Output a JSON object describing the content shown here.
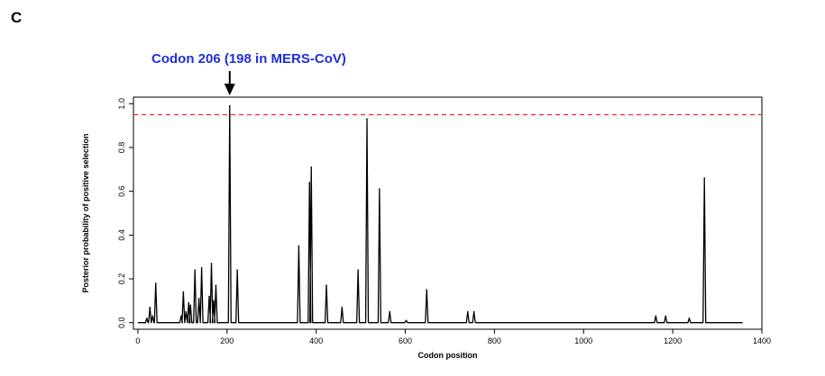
{
  "panel_label": "C",
  "annotation": "Codon 206 (198 in MERS-CoV)",
  "colors": {
    "line": "#000000",
    "threshold": "#e8262b",
    "annotation": "#1f2fd6"
  },
  "chart_data": {
    "type": "line",
    "xlabel": "Codon position",
    "ylabel": "Posterior probability of positive selection",
    "xlim": [
      -10,
      1400
    ],
    "ylim": [
      -0.03,
      1.03
    ],
    "xticks": [
      0,
      200,
      400,
      600,
      800,
      1000,
      1200,
      1400
    ],
    "yticks": [
      0.0,
      0.2,
      0.4,
      0.6,
      0.8,
      1.0
    ],
    "ytick_labels": [
      "0.0",
      "0.2",
      "0.4",
      "0.6",
      "0.8",
      "1.0"
    ],
    "threshold": 0.95,
    "threshold_style": "dashed",
    "x_range": [
      0,
      1357
    ],
    "baseline": 0.0,
    "arrow_target_x": 206,
    "peaks": [
      {
        "x": 20,
        "y": 0.02
      },
      {
        "x": 27,
        "y": 0.07
      },
      {
        "x": 33,
        "y": 0.03
      },
      {
        "x": 40,
        "y": 0.18
      },
      {
        "x": 97,
        "y": 0.03
      },
      {
        "x": 102,
        "y": 0.14
      },
      {
        "x": 108,
        "y": 0.05
      },
      {
        "x": 114,
        "y": 0.09
      },
      {
        "x": 118,
        "y": 0.08
      },
      {
        "x": 128,
        "y": 0.24
      },
      {
        "x": 143,
        "y": 0.25
      },
      {
        "x": 137,
        "y": 0.11
      },
      {
        "x": 160,
        "y": 0.12
      },
      {
        "x": 165,
        "y": 0.27
      },
      {
        "x": 170,
        "y": 0.1
      },
      {
        "x": 175,
        "y": 0.17
      },
      {
        "x": 206,
        "y": 0.99
      },
      {
        "x": 223,
        "y": 0.24
      },
      {
        "x": 361,
        "y": 0.35
      },
      {
        "x": 385,
        "y": 0.64
      },
      {
        "x": 389,
        "y": 0.71
      },
      {
        "x": 423,
        "y": 0.17
      },
      {
        "x": 458,
        "y": 0.07
      },
      {
        "x": 494,
        "y": 0.24
      },
      {
        "x": 514,
        "y": 0.93
      },
      {
        "x": 542,
        "y": 0.61
      },
      {
        "x": 565,
        "y": 0.05
      },
      {
        "x": 602,
        "y": 0.01
      },
      {
        "x": 648,
        "y": 0.15
      },
      {
        "x": 740,
        "y": 0.05
      },
      {
        "x": 754,
        "y": 0.05
      },
      {
        "x": 1162,
        "y": 0.03
      },
      {
        "x": 1184,
        "y": 0.03
      },
      {
        "x": 1237,
        "y": 0.02
      },
      {
        "x": 1271,
        "y": 0.66
      }
    ]
  }
}
